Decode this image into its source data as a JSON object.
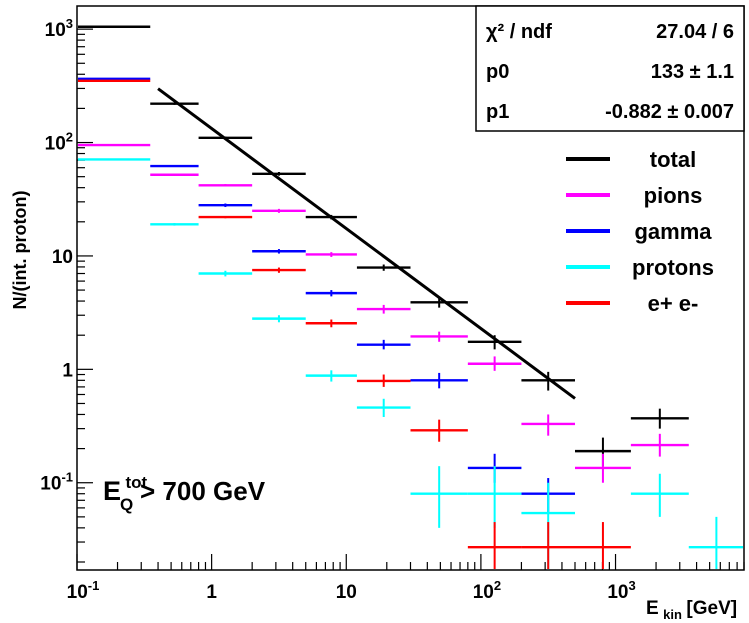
{
  "chart_data": {
    "type": "scatter",
    "x_scale": "log",
    "y_scale": "log",
    "xlim": [
      0.1,
      9000
    ],
    "ylim": [
      0.017,
      1600
    ],
    "ylabel": "N/(int. proton)",
    "xlabel": {
      "main": "E",
      "sub": "kin",
      "unit": " [GeV]"
    },
    "x_ticks": [
      {
        "value": 0.1,
        "mantissa": "10",
        "exp": "-1"
      },
      {
        "value": 1,
        "mantissa": "1",
        "exp": ""
      },
      {
        "value": 10,
        "mantissa": "10",
        "exp": ""
      },
      {
        "value": 100,
        "mantissa": "10",
        "exp": "2"
      },
      {
        "value": 1000,
        "mantissa": "10",
        "exp": "3"
      }
    ],
    "y_ticks": [
      {
        "value": 0.1,
        "mantissa": "10",
        "exp": "-1"
      },
      {
        "value": 1,
        "mantissa": "1",
        "exp": ""
      },
      {
        "value": 10,
        "mantissa": "10",
        "exp": ""
      },
      {
        "value": 100,
        "mantissa": "10",
        "exp": "2"
      },
      {
        "value": 1000,
        "mantissa": "10",
        "exp": "3"
      }
    ],
    "series": [
      {
        "name": "total",
        "color": "#000000",
        "points": [
          {
            "xlo": 0.1,
            "xhi": 0.35,
            "y": 1050,
            "ylo": 1050,
            "yhi": 1050
          },
          {
            "xlo": 0.35,
            "xhi": 0.8,
            "y": 220,
            "ylo": 215,
            "yhi": 225
          },
          {
            "xlo": 0.8,
            "xhi": 2,
            "y": 110,
            "ylo": 107,
            "yhi": 113
          },
          {
            "xlo": 2,
            "xhi": 5,
            "y": 53,
            "ylo": 51,
            "yhi": 55
          },
          {
            "xlo": 5,
            "xhi": 12,
            "y": 22,
            "ylo": 21,
            "yhi": 23
          },
          {
            "xlo": 12,
            "xhi": 30,
            "y": 7.9,
            "ylo": 7.4,
            "yhi": 8.4
          },
          {
            "xlo": 30,
            "xhi": 80,
            "y": 3.9,
            "ylo": 3.5,
            "yhi": 4.3
          },
          {
            "xlo": 80,
            "xhi": 200,
            "y": 1.75,
            "ylo": 1.5,
            "yhi": 2.0
          },
          {
            "xlo": 200,
            "xhi": 500,
            "y": 0.8,
            "ylo": 0.65,
            "yhi": 0.95
          },
          {
            "xlo": 500,
            "xhi": 1300,
            "y": 0.19,
            "ylo": 0.14,
            "yhi": 0.25
          },
          {
            "xlo": 1300,
            "xhi": 3500,
            "y": 0.37,
            "ylo": 0.3,
            "yhi": 0.45
          }
        ]
      },
      {
        "name": "pions",
        "color": "#ff00ff",
        "points": [
          {
            "xlo": 0.1,
            "xhi": 0.35,
            "y": 95,
            "ylo": 95,
            "yhi": 95
          },
          {
            "xlo": 0.35,
            "xhi": 0.8,
            "y": 52,
            "ylo": 51,
            "yhi": 53
          },
          {
            "xlo": 0.8,
            "xhi": 2,
            "y": 42,
            "ylo": 41,
            "yhi": 43
          },
          {
            "xlo": 2,
            "xhi": 5,
            "y": 25,
            "ylo": 24,
            "yhi": 26
          },
          {
            "xlo": 5,
            "xhi": 12,
            "y": 10.3,
            "ylo": 9.8,
            "yhi": 10.8
          },
          {
            "xlo": 12,
            "xhi": 30,
            "y": 3.4,
            "ylo": 3.1,
            "yhi": 3.7
          },
          {
            "xlo": 30,
            "xhi": 80,
            "y": 1.95,
            "ylo": 1.75,
            "yhi": 2.15
          },
          {
            "xlo": 80,
            "xhi": 200,
            "y": 1.12,
            "ylo": 0.97,
            "yhi": 1.3
          },
          {
            "xlo": 200,
            "xhi": 500,
            "y": 0.33,
            "ylo": 0.26,
            "yhi": 0.4
          },
          {
            "xlo": 500,
            "xhi": 1300,
            "y": 0.135,
            "ylo": 0.1,
            "yhi": 0.18
          },
          {
            "xlo": 1300,
            "xhi": 3500,
            "y": 0.215,
            "ylo": 0.17,
            "yhi": 0.27
          }
        ]
      },
      {
        "name": "gamma",
        "color": "#0000ff",
        "points": [
          {
            "xlo": 0.1,
            "xhi": 0.35,
            "y": 365,
            "ylo": 365,
            "yhi": 365
          },
          {
            "xlo": 0.35,
            "xhi": 0.8,
            "y": 62,
            "ylo": 61,
            "yhi": 63
          },
          {
            "xlo": 0.8,
            "xhi": 2,
            "y": 28,
            "ylo": 27,
            "yhi": 29
          },
          {
            "xlo": 2,
            "xhi": 5,
            "y": 11,
            "ylo": 10.5,
            "yhi": 11.5
          },
          {
            "xlo": 5,
            "xhi": 12,
            "y": 4.7,
            "ylo": 4.4,
            "yhi": 5.0
          },
          {
            "xlo": 12,
            "xhi": 30,
            "y": 1.65,
            "ylo": 1.5,
            "yhi": 1.82
          },
          {
            "xlo": 30,
            "xhi": 80,
            "y": 0.8,
            "ylo": 0.68,
            "yhi": 0.93
          },
          {
            "xlo": 80,
            "xhi": 200,
            "y": 0.135,
            "ylo": 0.1,
            "yhi": 0.18
          },
          {
            "xlo": 200,
            "xhi": 500,
            "y": 0.08,
            "ylo": 0.055,
            "yhi": 0.11
          }
        ]
      },
      {
        "name": "protons",
        "color": "#00ffff",
        "points": [
          {
            "xlo": 0.1,
            "xhi": 0.35,
            "y": 71,
            "ylo": 71,
            "yhi": 71
          },
          {
            "xlo": 0.35,
            "xhi": 0.8,
            "y": 19,
            "ylo": 18.5,
            "yhi": 19.5
          },
          {
            "xlo": 0.8,
            "xhi": 2,
            "y": 7,
            "ylo": 6.6,
            "yhi": 7.4
          },
          {
            "xlo": 2,
            "xhi": 5,
            "y": 2.8,
            "ylo": 2.6,
            "yhi": 3.0
          },
          {
            "xlo": 5,
            "xhi": 12,
            "y": 0.88,
            "ylo": 0.78,
            "yhi": 0.98
          },
          {
            "xlo": 12,
            "xhi": 30,
            "y": 0.46,
            "ylo": 0.38,
            "yhi": 0.55
          },
          {
            "xlo": 30,
            "xhi": 80,
            "y": 0.08,
            "ylo": 0.04,
            "yhi": 0.14
          },
          {
            "xlo": 80,
            "xhi": 200,
            "y": 0.08,
            "ylo": 0.04,
            "yhi": 0.14
          },
          {
            "xlo": 200,
            "xhi": 500,
            "y": 0.054,
            "ylo": 0.017,
            "yhi": 0.1
          },
          {
            "xlo": 1300,
            "xhi": 3500,
            "y": 0.08,
            "ylo": 0.05,
            "yhi": 0.12
          },
          {
            "xlo": 3500,
            "xhi": 9000,
            "y": 0.027,
            "ylo": 0.017,
            "yhi": 0.05
          }
        ]
      },
      {
        "name": "e+ e-",
        "color": "#ff0000",
        "points": [
          {
            "xlo": 0.1,
            "xhi": 0.35,
            "y": 350,
            "ylo": 350,
            "yhi": 350
          },
          {
            "xlo": 0.8,
            "xhi": 2,
            "y": 22,
            "ylo": 21.5,
            "yhi": 22.5
          },
          {
            "xlo": 2,
            "xhi": 5,
            "y": 7.5,
            "ylo": 7.1,
            "yhi": 7.9
          },
          {
            "xlo": 5,
            "xhi": 12,
            "y": 2.55,
            "ylo": 2.35,
            "yhi": 2.75
          },
          {
            "xlo": 12,
            "xhi": 30,
            "y": 0.79,
            "ylo": 0.7,
            "yhi": 0.9
          },
          {
            "xlo": 30,
            "xhi": 80,
            "y": 0.29,
            "ylo": 0.23,
            "yhi": 0.36
          },
          {
            "xlo": 80,
            "xhi": 200,
            "y": 0.027,
            "ylo": 0.017,
            "yhi": 0.045
          },
          {
            "xlo": 200,
            "xhi": 500,
            "y": 0.027,
            "ylo": 0.017,
            "yhi": 0.045
          },
          {
            "xlo": 500,
            "xhi": 1300,
            "y": 0.027,
            "ylo": 0.017,
            "yhi": 0.045
          }
        ]
      }
    ],
    "fit": {
      "x_from": 0.4,
      "x_to": 500,
      "p0": 133,
      "p1": -0.882,
      "color": "#000000"
    },
    "stats": [
      {
        "label": "χ² / ndf",
        "value": "27.04 / 6"
      },
      {
        "label": "p0",
        "value": "133 ± 1.1"
      },
      {
        "label": "p1",
        "value": "-0.882 ± 0.007"
      }
    ],
    "legend": [
      {
        "label": "total",
        "color": "#000000"
      },
      {
        "label": "pions",
        "color": "#ff00ff"
      },
      {
        "label": "gamma",
        "color": "#0000ff"
      },
      {
        "label": "protons",
        "color": "#00ffff"
      },
      {
        "label": "e+ e-",
        "color": "#ff0000"
      }
    ],
    "annotation": {
      "base": "E",
      "sup": "tot",
      "sub": "Q",
      "text": " > 700 GeV"
    },
    "legend_placement": "top-right",
    "grid": false
  }
}
